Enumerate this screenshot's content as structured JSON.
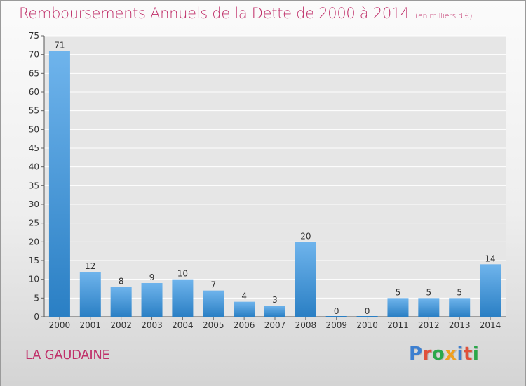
{
  "header": {
    "title": "Remboursements Annuels de la Dette de 2000 à 2014",
    "unit": "(en milliers d'€)"
  },
  "footer": {
    "commune": "LA GAUDAINE",
    "logo_text": "Proxiti"
  },
  "colors": {
    "bar_light": "#6fb4ec",
    "bar_dark": "#2a7fc4",
    "title": "#c0306a",
    "logo": [
      "#3d7fd0",
      "#e0503a",
      "#2aa84a",
      "#f0a020",
      "#3d7fd0",
      "#e0503a",
      "#2aa84a"
    ]
  },
  "chart_data": {
    "type": "bar",
    "categories": [
      "2000",
      "2001",
      "2002",
      "2003",
      "2004",
      "2005",
      "2006",
      "2007",
      "2008",
      "2009",
      "2010",
      "2011",
      "2012",
      "2013",
      "2014"
    ],
    "values": [
      71,
      12,
      8,
      9,
      10,
      7,
      4,
      3,
      20,
      0,
      0,
      5,
      5,
      5,
      14
    ],
    "title": "Remboursements Annuels de la Dette de 2000 à 2014",
    "ylim": [
      0,
      75
    ],
    "yticks": [
      0,
      5,
      10,
      15,
      20,
      25,
      30,
      35,
      40,
      45,
      50,
      55,
      60,
      65,
      70,
      75
    ],
    "grid": true,
    "data_labels": true
  }
}
